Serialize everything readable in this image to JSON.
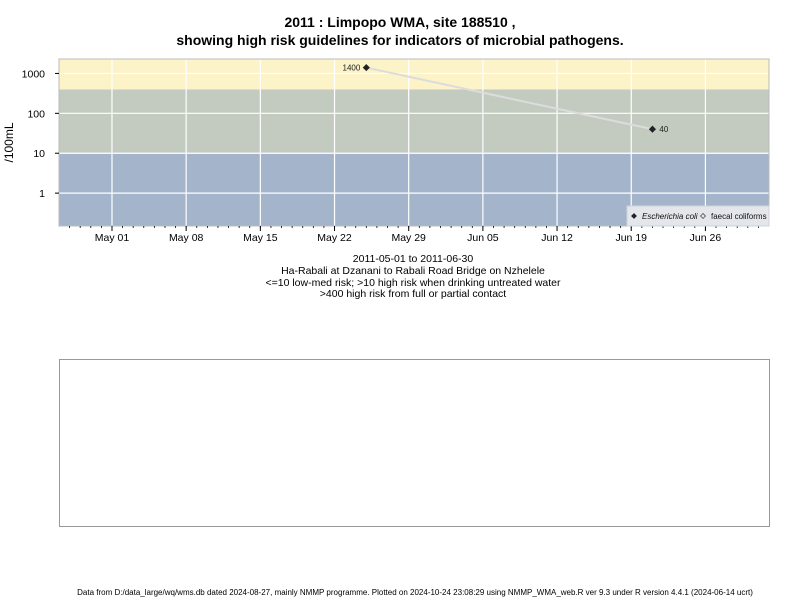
{
  "header": {
    "title_line1": "2011 : Limpopo WMA, site 188510 ,",
    "title_line2": "showing high risk guidelines for indicators of microbial pathogens."
  },
  "caption": {
    "date_range": "2011-05-01 to 2011-06-30",
    "site_name": "Ha-Rabali at Dzanani to Rabali Road Bridge on Nzhelele",
    "guideline_1": "<=10 low-med risk; >10 high risk when drinking untreated water",
    "guideline_2": ">400 high risk from full or partial contact"
  },
  "footer": {
    "text": "Data from D:/data_large/wq/wms.db dated 2024-08-27, mainly NMMP programme. Plotted on 2024-10-24 23:08:29 using NMMP_WMA_web.R ver 9.3 under R version 4.4.1 (2024-06-14 ucrt)"
  },
  "chart_data": {
    "type": "line",
    "ylabel": "/100mL",
    "y_scale": "log",
    "ylim": [
      0.15,
      2300
    ],
    "x_range": [
      "2011-04-26",
      "2011-07-02"
    ],
    "y_ticks": [
      {
        "value": 1,
        "label": "1"
      },
      {
        "value": 10,
        "label": "10"
      },
      {
        "value": 100,
        "label": "100"
      },
      {
        "value": 1000,
        "label": "1000"
      }
    ],
    "x_ticks": [
      {
        "date": "2011-05-01",
        "label": "May 01"
      },
      {
        "date": "2011-05-08",
        "label": "May 08"
      },
      {
        "date": "2011-05-15",
        "label": "May 15"
      },
      {
        "date": "2011-05-22",
        "label": "May 22"
      },
      {
        "date": "2011-05-29",
        "label": "May 29"
      },
      {
        "date": "2011-06-05",
        "label": "Jun 05"
      },
      {
        "date": "2011-06-12",
        "label": "Jun 12"
      },
      {
        "date": "2011-06-19",
        "label": "Jun 19"
      },
      {
        "date": "2011-06-26",
        "label": "Jun 26"
      }
    ],
    "risk_bands": [
      {
        "from": 0.15,
        "to": 10,
        "color": "#a3b4cb"
      },
      {
        "from": 10,
        "to": 400,
        "color": "#c3cbc0"
      },
      {
        "from": 400,
        "to": 2300,
        "color": "#fcf3c9"
      }
    ],
    "grid": true,
    "legend_position": "bottom-right",
    "series": [
      {
        "name": "Escherichia coli",
        "marker": "filled-diamond",
        "line_color": "#dcdcdc",
        "points": [
          {
            "x": "2011-05-25",
            "y": 1400,
            "label": "1400"
          },
          {
            "x": "2011-06-21",
            "y": 40,
            "label": "40"
          }
        ]
      },
      {
        "name": "faecal coliforms",
        "marker": "open-diamond",
        "line_color": "#dcdcdc",
        "points": []
      }
    ]
  }
}
